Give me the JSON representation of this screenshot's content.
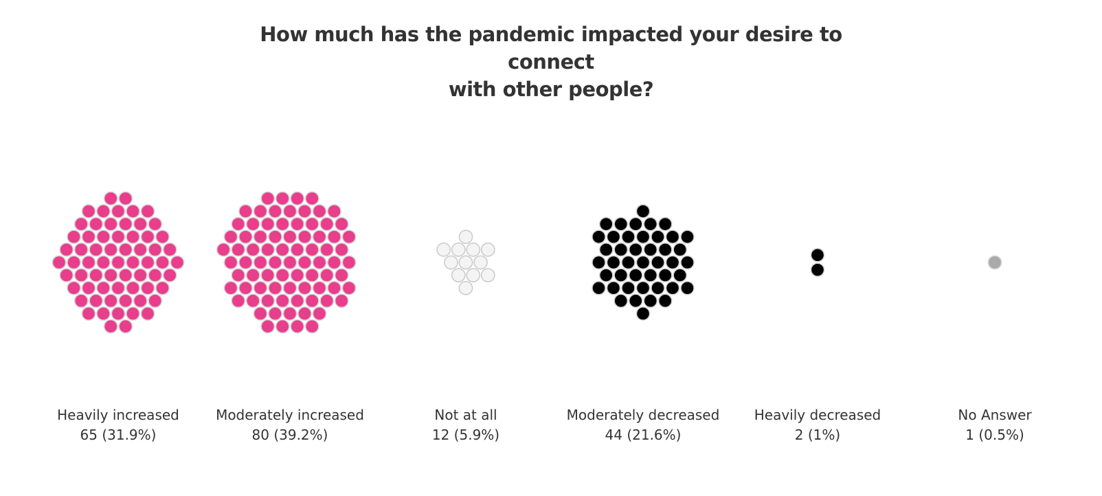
{
  "chart_data": {
    "type": "bubble-cluster",
    "title": "How much has the pandemic impacted your desire to connect with other people?",
    "title_lines": [
      "How much has the pandemic impacted your desire to connect",
      "with other people?"
    ],
    "unit": "responses",
    "categories": [
      "Heavily increased",
      "Moderately increased",
      "Not at all",
      "Moderately decreased",
      "Heavily decreased",
      "No Answer"
    ],
    "values": [
      65,
      80,
      12,
      44,
      2,
      1
    ],
    "value_labels": [
      "65 (31.9%)",
      "80 (39.2%)",
      "12 (5.9%)",
      "44 (21.6%)",
      "2 (1%)",
      "1 (0.5%)"
    ],
    "colors": [
      "#e83e8c",
      "#e83e8c",
      "#f4f4f4",
      "#000000",
      "#000000",
      "#aaaaaa"
    ],
    "stroke_colors": [
      "#d6d6d6",
      "#d6d6d6",
      "#cccccc",
      "#d6d6d6",
      "#d6d6d6",
      "#d6d6d6"
    ]
  }
}
